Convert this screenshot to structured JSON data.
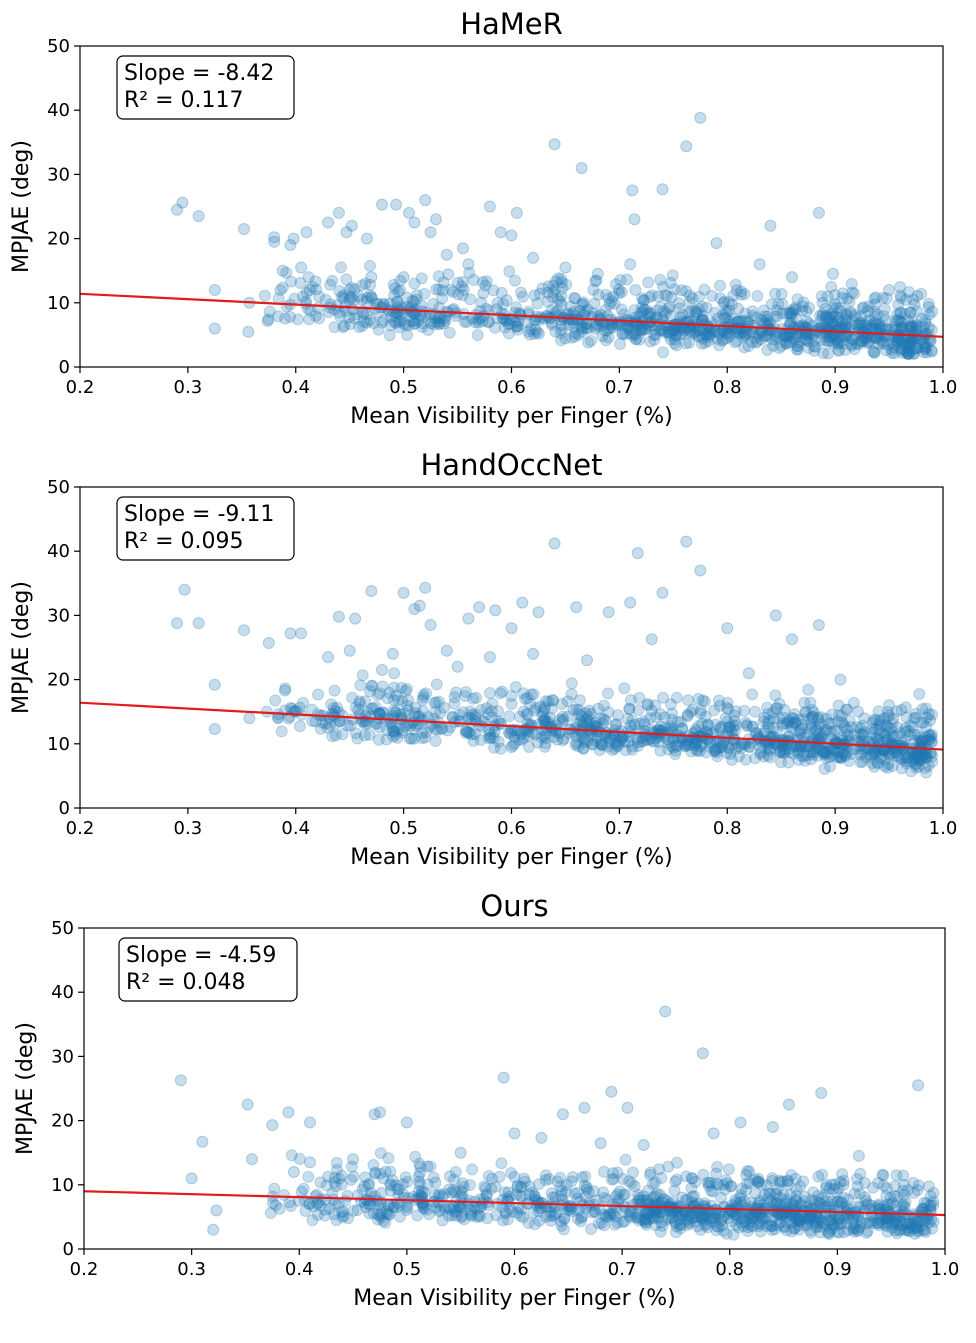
{
  "chart_data": [
    {
      "type": "scatter",
      "title": "HaMeR",
      "xlabel": "Mean Visibility per Finger (%)",
      "ylabel": "MPJAE (deg)",
      "xlim": [
        0.2,
        1.0
      ],
      "ylim": [
        0,
        50
      ],
      "xticks": [
        "0.2",
        "0.3",
        "0.4",
        "0.5",
        "0.6",
        "0.7",
        "0.8",
        "0.9",
        "1.0"
      ],
      "yticks": [
        "0",
        "10",
        "20",
        "30",
        "40",
        "50"
      ],
      "slope": -8.42,
      "r2": 0.117,
      "slope_text": "Slope = -8.42",
      "r2_text": "R² = 0.117",
      "fit_line": [
        [
          0.2,
          11.4
        ],
        [
          1.0,
          4.7
        ]
      ],
      "cluster_mean": 6.5,
      "n_background": 1100,
      "outliers": [
        [
          0.29,
          24.5
        ],
        [
          0.295,
          25.6
        ],
        [
          0.31,
          23.5
        ],
        [
          0.325,
          6.0
        ],
        [
          0.325,
          12.0
        ],
        [
          0.352,
          21.5
        ],
        [
          0.356,
          5.5
        ],
        [
          0.357,
          10.0
        ],
        [
          0.38,
          19.5
        ],
        [
          0.38,
          20.2
        ],
        [
          0.388,
          15.0
        ],
        [
          0.395,
          19.0
        ],
        [
          0.398,
          20.0
        ],
        [
          0.405,
          15.5
        ],
        [
          0.41,
          21.0
        ],
        [
          0.413,
          12.0
        ],
        [
          0.43,
          22.5
        ],
        [
          0.44,
          24.0
        ],
        [
          0.447,
          21.0
        ],
        [
          0.452,
          22.0
        ],
        [
          0.466,
          20.0
        ],
        [
          0.48,
          25.3
        ],
        [
          0.493,
          25.3
        ],
        [
          0.5,
          14.0
        ],
        [
          0.505,
          24.0
        ],
        [
          0.51,
          22.5
        ],
        [
          0.52,
          26.0
        ],
        [
          0.525,
          21.0
        ],
        [
          0.53,
          23.0
        ],
        [
          0.54,
          17.5
        ],
        [
          0.555,
          18.5
        ],
        [
          0.58,
          25.0
        ],
        [
          0.59,
          21.0
        ],
        [
          0.605,
          24.0
        ],
        [
          0.64,
          34.7
        ],
        [
          0.665,
          31.0
        ],
        [
          0.712,
          27.5
        ],
        [
          0.714,
          23.0
        ],
        [
          0.74,
          27.7
        ],
        [
          0.762,
          34.4
        ],
        [
          0.775,
          38.8
        ],
        [
          0.79,
          19.3
        ],
        [
          0.84,
          22.0
        ],
        [
          0.885,
          24.0
        ],
        [
          0.898,
          14.5
        ],
        [
          0.71,
          16.0
        ],
        [
          0.6,
          20.5
        ],
        [
          0.62,
          17.0
        ],
        [
          0.65,
          15.5
        ],
        [
          0.83,
          16.0
        ],
        [
          0.86,
          14.0
        ],
        [
          0.95,
          12.0
        ],
        [
          0.47,
          14.0
        ],
        [
          0.56,
          16.0
        ],
        [
          0.68,
          14.5
        ]
      ]
    },
    {
      "type": "scatter",
      "title": "HandOccNet",
      "xlabel": "Mean Visibility per Finger (%)",
      "ylabel": "MPJAE (deg)",
      "xlim": [
        0.2,
        1.0
      ],
      "ylim": [
        0,
        50
      ],
      "xticks": [
        "0.2",
        "0.3",
        "0.4",
        "0.5",
        "0.6",
        "0.7",
        "0.8",
        "0.9",
        "1.0"
      ],
      "yticks": [
        "0",
        "10",
        "20",
        "30",
        "40",
        "50"
      ],
      "slope": -9.11,
      "r2": 0.095,
      "slope_text": "Slope = -9.11",
      "r2_text": "R² = 0.095",
      "fit_line": [
        [
          0.2,
          16.4
        ],
        [
          1.0,
          9.1
        ]
      ],
      "cluster_mean": 11.5,
      "n_background": 1100,
      "outliers": [
        [
          0.29,
          28.8
        ],
        [
          0.297,
          34.0
        ],
        [
          0.31,
          28.8
        ],
        [
          0.325,
          12.3
        ],
        [
          0.325,
          19.2
        ],
        [
          0.352,
          27.7
        ],
        [
          0.357,
          14.0
        ],
        [
          0.375,
          25.7
        ],
        [
          0.39,
          18.3
        ],
        [
          0.395,
          27.2
        ],
        [
          0.405,
          27.2
        ],
        [
          0.43,
          23.5
        ],
        [
          0.44,
          29.8
        ],
        [
          0.45,
          24.5
        ],
        [
          0.455,
          29.5
        ],
        [
          0.47,
          33.8
        ],
        [
          0.49,
          24.0
        ],
        [
          0.5,
          33.5
        ],
        [
          0.51,
          31.0
        ],
        [
          0.515,
          31.5
        ],
        [
          0.52,
          34.3
        ],
        [
          0.525,
          28.5
        ],
        [
          0.54,
          24.5
        ],
        [
          0.56,
          29.5
        ],
        [
          0.57,
          31.3
        ],
        [
          0.585,
          30.8
        ],
        [
          0.6,
          28.0
        ],
        [
          0.61,
          32.0
        ],
        [
          0.625,
          30.5
        ],
        [
          0.64,
          41.2
        ],
        [
          0.66,
          31.3
        ],
        [
          0.69,
          30.5
        ],
        [
          0.71,
          32.0
        ],
        [
          0.717,
          39.7
        ],
        [
          0.74,
          33.5
        ],
        [
          0.762,
          41.5
        ],
        [
          0.775,
          37.0
        ],
        [
          0.8,
          28.0
        ],
        [
          0.845,
          30.0
        ],
        [
          0.86,
          26.3
        ],
        [
          0.885,
          28.5
        ],
        [
          0.73,
          26.3
        ],
        [
          0.55,
          22.0
        ],
        [
          0.58,
          23.5
        ],
        [
          0.67,
          23.0
        ],
        [
          0.905,
          20.0
        ],
        [
          0.48,
          21.5
        ],
        [
          0.62,
          24.0
        ],
        [
          0.82,
          21.0
        ],
        [
          0.95,
          16.0
        ]
      ]
    },
    {
      "type": "scatter",
      "title": "Ours",
      "xlabel": "Mean Visibility per Finger (%)",
      "ylabel": "MPJAE (deg)",
      "xlim": [
        0.2,
        1.0
      ],
      "ylim": [
        0,
        50
      ],
      "xticks": [
        "0.2",
        "0.3",
        "0.4",
        "0.5",
        "0.6",
        "0.7",
        "0.8",
        "0.9",
        "1.0"
      ],
      "yticks": [
        "0",
        "10",
        "20",
        "30",
        "40",
        "50"
      ],
      "slope": -4.59,
      "r2": 0.048,
      "slope_text": "Slope = -4.59",
      "r2_text": "R² = 0.048",
      "fit_line": [
        [
          0.2,
          9.0
        ],
        [
          1.0,
          5.3
        ]
      ],
      "cluster_mean": 5.8,
      "n_background": 1100,
      "outliers": [
        [
          0.29,
          26.3
        ],
        [
          0.3,
          11.0
        ],
        [
          0.31,
          16.7
        ],
        [
          0.32,
          3.0
        ],
        [
          0.323,
          6.0
        ],
        [
          0.352,
          22.5
        ],
        [
          0.356,
          14.0
        ],
        [
          0.375,
          19.3
        ],
        [
          0.39,
          21.3
        ],
        [
          0.395,
          12.0
        ],
        [
          0.41,
          19.7
        ],
        [
          0.41,
          13.5
        ],
        [
          0.47,
          21.0
        ],
        [
          0.475,
          21.3
        ],
        [
          0.5,
          19.7
        ],
        [
          0.59,
          26.7
        ],
        [
          0.6,
          18.0
        ],
        [
          0.625,
          17.3
        ],
        [
          0.645,
          21.0
        ],
        [
          0.665,
          22.0
        ],
        [
          0.69,
          24.5
        ],
        [
          0.705,
          22.0
        ],
        [
          0.74,
          37.0
        ],
        [
          0.775,
          30.5
        ],
        [
          0.785,
          18.0
        ],
        [
          0.81,
          19.7
        ],
        [
          0.855,
          22.5
        ],
        [
          0.885,
          24.3
        ],
        [
          0.975,
          25.5
        ],
        [
          0.72,
          16.2
        ],
        [
          0.55,
          15.0
        ],
        [
          0.68,
          16.5
        ],
        [
          0.84,
          19.0
        ],
        [
          0.92,
          14.5
        ],
        [
          0.45,
          14.0
        ]
      ]
    }
  ]
}
